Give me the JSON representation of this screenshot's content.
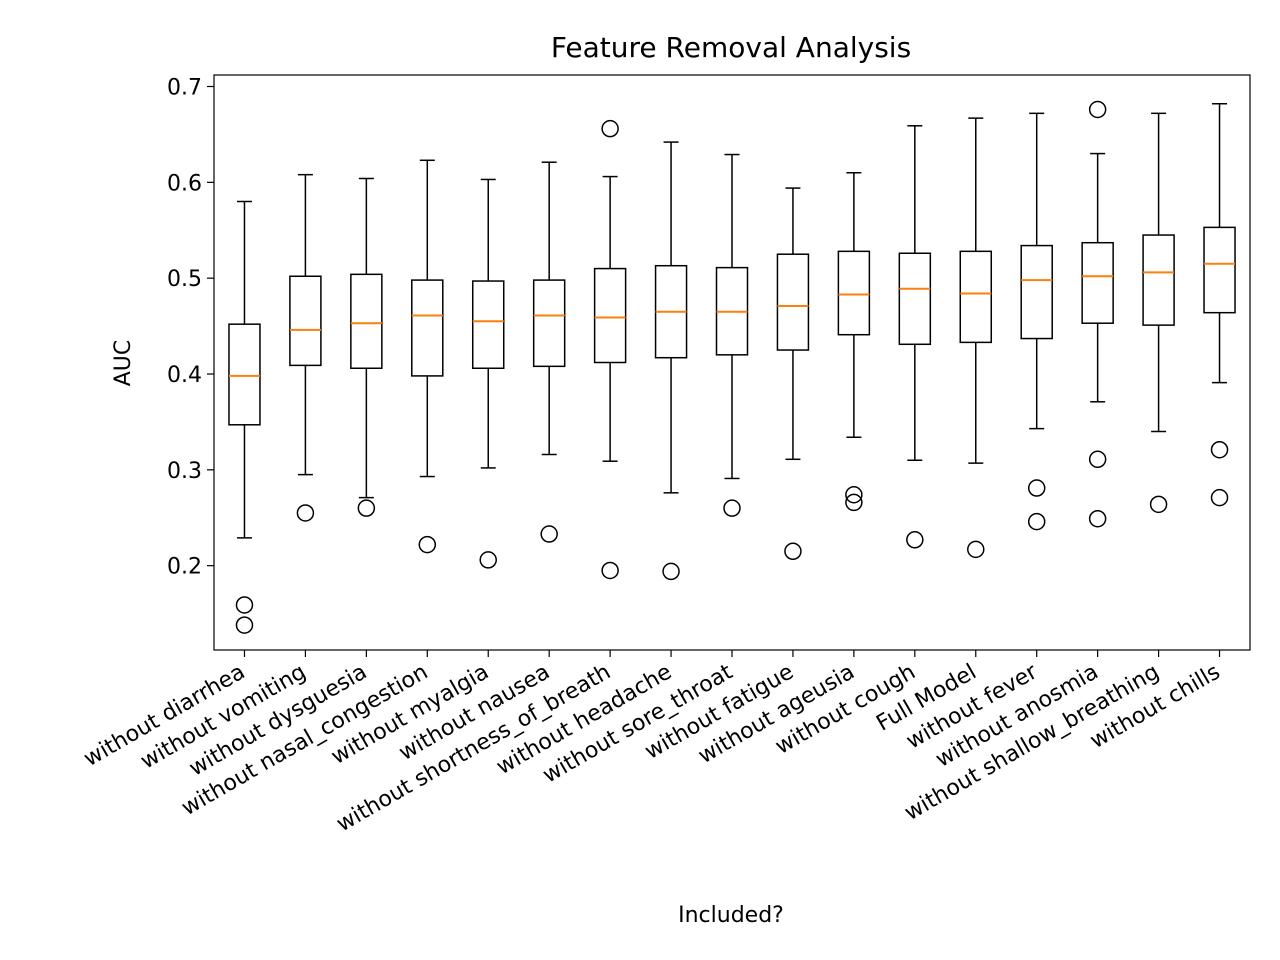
{
  "chart_data": {
    "type": "box",
    "title": "Feature Removal Analysis",
    "xlabel": "Included?",
    "ylabel": "AUC",
    "ylim": [
      0.112,
      0.712
    ],
    "yticks": [
      0.2,
      0.3,
      0.4,
      0.5,
      0.6,
      0.7
    ],
    "ytick_labels": [
      "0.2",
      "0.3",
      "0.4",
      "0.5",
      "0.6",
      "0.7"
    ],
    "grid": false,
    "legend": "none",
    "colors": {
      "box": "#000000",
      "median": "#ff7f0e",
      "flier": "#000000"
    },
    "categories": [
      "without diarrhea",
      "without vomiting",
      "without dysguesia",
      "without nasal_congestion",
      "without myalgia",
      "without nausea",
      "without shortness_of_breath",
      "without headache",
      "without sore_throat",
      "without fatigue",
      "without ageusia",
      "without cough",
      "Full Model",
      "without fever",
      "without anosmia",
      "without shallow_breathing",
      "without chills"
    ],
    "boxes": [
      {
        "whislo": 0.229,
        "q1": 0.347,
        "med": 0.398,
        "q3": 0.452,
        "whishi": 0.58,
        "fliers": [
          0.159,
          0.138
        ]
      },
      {
        "whislo": 0.295,
        "q1": 0.409,
        "med": 0.446,
        "q3": 0.502,
        "whishi": 0.608,
        "fliers": [
          0.255
        ]
      },
      {
        "whislo": 0.271,
        "q1": 0.406,
        "med": 0.453,
        "q3": 0.504,
        "whishi": 0.604,
        "fliers": [
          0.26
        ]
      },
      {
        "whislo": 0.293,
        "q1": 0.398,
        "med": 0.461,
        "q3": 0.498,
        "whishi": 0.623,
        "fliers": [
          0.222
        ]
      },
      {
        "whislo": 0.302,
        "q1": 0.406,
        "med": 0.455,
        "q3": 0.497,
        "whishi": 0.603,
        "fliers": [
          0.206
        ]
      },
      {
        "whislo": 0.316,
        "q1": 0.408,
        "med": 0.461,
        "q3": 0.498,
        "whishi": 0.621,
        "fliers": [
          0.233
        ]
      },
      {
        "whislo": 0.309,
        "q1": 0.412,
        "med": 0.459,
        "q3": 0.51,
        "whishi": 0.606,
        "fliers": [
          0.656,
          0.195
        ]
      },
      {
        "whislo": 0.276,
        "q1": 0.417,
        "med": 0.465,
        "q3": 0.513,
        "whishi": 0.642,
        "fliers": [
          0.194
        ]
      },
      {
        "whislo": 0.291,
        "q1": 0.42,
        "med": 0.465,
        "q3": 0.511,
        "whishi": 0.629,
        "fliers": [
          0.26
        ]
      },
      {
        "whislo": 0.311,
        "q1": 0.425,
        "med": 0.471,
        "q3": 0.525,
        "whishi": 0.594,
        "fliers": [
          0.215
        ]
      },
      {
        "whislo": 0.334,
        "q1": 0.441,
        "med": 0.483,
        "q3": 0.528,
        "whishi": 0.61,
        "fliers": [
          0.274,
          0.266
        ]
      },
      {
        "whislo": 0.31,
        "q1": 0.431,
        "med": 0.489,
        "q3": 0.526,
        "whishi": 0.659,
        "fliers": [
          0.227
        ]
      },
      {
        "whislo": 0.307,
        "q1": 0.433,
        "med": 0.484,
        "q3": 0.528,
        "whishi": 0.667,
        "fliers": [
          0.217
        ]
      },
      {
        "whislo": 0.343,
        "q1": 0.437,
        "med": 0.498,
        "q3": 0.534,
        "whishi": 0.672,
        "fliers": [
          0.281,
          0.246
        ]
      },
      {
        "whislo": 0.371,
        "q1": 0.453,
        "med": 0.502,
        "q3": 0.537,
        "whishi": 0.63,
        "fliers": [
          0.676,
          0.311,
          0.249
        ]
      },
      {
        "whislo": 0.34,
        "q1": 0.451,
        "med": 0.506,
        "q3": 0.545,
        "whishi": 0.672,
        "fliers": [
          0.264
        ]
      },
      {
        "whislo": 0.391,
        "q1": 0.464,
        "med": 0.515,
        "q3": 0.553,
        "whishi": 0.682,
        "fliers": [
          0.321,
          0.271
        ]
      }
    ]
  }
}
